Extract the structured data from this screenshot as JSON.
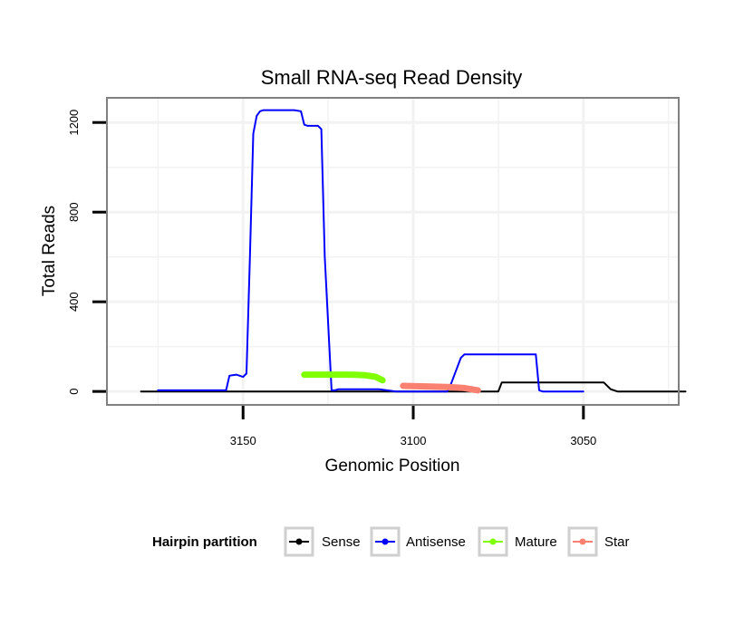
{
  "chart_data": {
    "type": "line",
    "title": "Small RNA-seq Read Density",
    "xlabel": "Genomic Position",
    "ylabel": "Total Reads",
    "x_reversed": true,
    "xlim": [
      3022,
      3190
    ],
    "ylim": [
      -60,
      1310
    ],
    "x_ticks": [
      3150,
      3100,
      3050
    ],
    "y_ticks": [
      0,
      400,
      800,
      1200
    ],
    "grid": true,
    "legend": {
      "title": "Hairpin partition",
      "position": "bottom",
      "entries": [
        "Sense",
        "Antisense",
        "Mature",
        "Star"
      ]
    },
    "series": [
      {
        "name": "Sense",
        "color": "#000000",
        "x": [
          3180,
          3140,
          3132,
          3125,
          3120,
          3100,
          3090,
          3080,
          3075,
          3074,
          3066,
          3065,
          3045,
          3044,
          3042,
          3040,
          3020
        ],
        "y": [
          0,
          0,
          0,
          0,
          0,
          0,
          0,
          0,
          0,
          40,
          40,
          40,
          40,
          40,
          10,
          0,
          0
        ]
      },
      {
        "name": "Antisense",
        "color": "#0000ff",
        "x": [
          3175,
          3155,
          3154,
          3152,
          3150,
          3149,
          3148,
          3147,
          3146,
          3145,
          3144,
          3135,
          3133,
          3132,
          3131,
          3128,
          3127,
          3126,
          3124,
          3123,
          3122,
          3120,
          3110,
          3105,
          3090,
          3089,
          3088,
          3086,
          3085,
          3084,
          3065,
          3064,
          3063,
          3062,
          3050
        ],
        "y": [
          5,
          5,
          70,
          75,
          65,
          80,
          600,
          1150,
          1230,
          1250,
          1255,
          1255,
          1250,
          1190,
          1185,
          1185,
          1170,
          600,
          5,
          5,
          10,
          10,
          10,
          0,
          0,
          30,
          70,
          150,
          165,
          165,
          165,
          165,
          5,
          0,
          0
        ]
      },
      {
        "name": "Mature",
        "color": "#7fff00",
        "x": [
          3132,
          3125,
          3118,
          3114,
          3111,
          3109
        ],
        "y": [
          75,
          75,
          75,
          72,
          65,
          50
        ]
      },
      {
        "name": "Star",
        "color": "#fa8072",
        "x": [
          3103,
          3095,
          3090,
          3085,
          3081
        ],
        "y": [
          25,
          22,
          20,
          15,
          5
        ]
      }
    ]
  }
}
